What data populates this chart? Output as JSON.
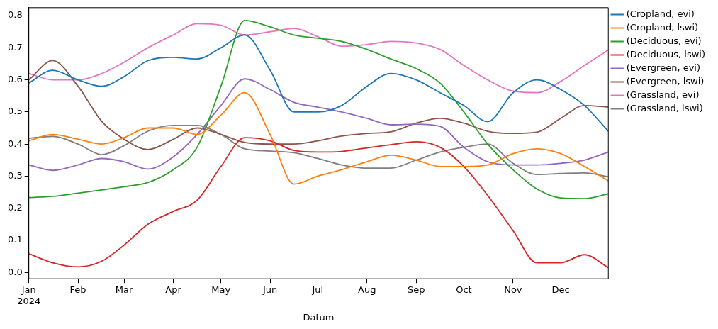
{
  "chart_data": {
    "type": "line",
    "xlabel": "Datum",
    "x": [
      "2024-01-01",
      "2024-01-16",
      "2024-02-01",
      "2024-02-16",
      "2024-03-01",
      "2024-03-16",
      "2024-04-01",
      "2024-04-16",
      "2024-05-01",
      "2024-05-16",
      "2024-06-01",
      "2024-06-16",
      "2024-07-01",
      "2024-07-16",
      "2024-08-01",
      "2024-08-16",
      "2024-09-01",
      "2024-09-16",
      "2024-10-01",
      "2024-10-16",
      "2024-11-01",
      "2024-11-16",
      "2024-12-01",
      "2024-12-16",
      "2024-12-31"
    ],
    "xlim": [
      "2024-01-01",
      "2024-12-31"
    ],
    "xticks": [
      {
        "value": "2024-01-01",
        "label": "Jan\n2024"
      },
      {
        "value": "2024-02-01",
        "label": "Feb"
      },
      {
        "value": "2024-03-01",
        "label": "Mar"
      },
      {
        "value": "2024-04-01",
        "label": "Apr"
      },
      {
        "value": "2024-05-01",
        "label": "May"
      },
      {
        "value": "2024-06-01",
        "label": "Jun"
      },
      {
        "value": "2024-07-01",
        "label": "Jul"
      },
      {
        "value": "2024-08-01",
        "label": "Aug"
      },
      {
        "value": "2024-09-01",
        "label": "Sep"
      },
      {
        "value": "2024-10-01",
        "label": "Oct"
      },
      {
        "value": "2024-11-01",
        "label": "Nov"
      },
      {
        "value": "2024-12-01",
        "label": "Dec"
      }
    ],
    "ylim": [
      -0.02,
      0.825
    ],
    "yticks": [
      {
        "value": 0,
        "label": "0.0"
      },
      {
        "value": 0.1,
        "label": "0.1"
      },
      {
        "value": 0.2,
        "label": "0.2"
      },
      {
        "value": 0.3,
        "label": "0.3"
      },
      {
        "value": 0.4,
        "label": "0.4"
      },
      {
        "value": 0.5,
        "label": "0.5"
      },
      {
        "value": 0.6,
        "label": "0.6"
      },
      {
        "value": 0.7,
        "label": "0.7"
      },
      {
        "value": 0.8,
        "label": "0.8"
      }
    ],
    "grid": false,
    "legend": "top right",
    "marker": "none",
    "line_style": "solid",
    "series": [
      {
        "name": "(Cropland, evi)",
        "color": "#1f77b4",
        "values": [
          0.59,
          0.63,
          0.6,
          0.58,
          0.61,
          0.66,
          0.67,
          0.665,
          0.7,
          0.74,
          0.63,
          0.5,
          0.5,
          0.52,
          0.58,
          0.62,
          0.6,
          0.56,
          0.52,
          0.47,
          0.56,
          0.6,
          0.57,
          0.52,
          0.44
        ]
      },
      {
        "name": "(Cropland, lswi)",
        "color": "#ff7f0e",
        "values": [
          0.41,
          0.43,
          0.415,
          0.4,
          0.42,
          0.45,
          0.45,
          0.43,
          0.49,
          0.56,
          0.43,
          0.275,
          0.3,
          0.32,
          0.345,
          0.365,
          0.35,
          0.33,
          0.33,
          0.335,
          0.37,
          0.385,
          0.37,
          0.33,
          0.285
        ]
      },
      {
        "name": "(Deciduous, evi)",
        "color": "#2ca02c",
        "values": [
          0.233,
          0.237,
          0.247,
          0.257,
          0.267,
          0.28,
          0.32,
          0.39,
          0.58,
          0.785,
          0.765,
          0.74,
          0.73,
          0.72,
          0.695,
          0.665,
          0.635,
          0.59,
          0.5,
          0.4,
          0.32,
          0.26,
          0.232,
          0.23,
          0.245
        ]
      },
      {
        "name": "(Deciduous, lswi)",
        "color": "#d62728",
        "values": [
          0.058,
          0.03,
          0.017,
          0.035,
          0.085,
          0.15,
          0.19,
          0.225,
          0.33,
          0.42,
          0.41,
          0.38,
          0.375,
          0.377,
          0.388,
          0.398,
          0.407,
          0.39,
          0.33,
          0.24,
          0.13,
          0.03,
          0.03,
          0.055,
          0.015
        ]
      },
      {
        "name": "(Evergreen, evi)",
        "color": "#9467bd",
        "values": [
          0.335,
          0.318,
          0.335,
          0.355,
          0.345,
          0.322,
          0.36,
          0.43,
          0.52,
          0.603,
          0.57,
          0.53,
          0.515,
          0.5,
          0.48,
          0.46,
          0.462,
          0.455,
          0.39,
          0.345,
          0.335,
          0.335,
          0.34,
          0.35,
          0.375
        ]
      },
      {
        "name": "(Evergreen, lswi)",
        "color": "#8c564b",
        "values": [
          0.6,
          0.66,
          0.58,
          0.47,
          0.415,
          0.383,
          0.415,
          0.45,
          0.43,
          0.405,
          0.4,
          0.4,
          0.41,
          0.425,
          0.433,
          0.438,
          0.465,
          0.48,
          0.465,
          0.44,
          0.433,
          0.437,
          0.48,
          0.52,
          0.515
        ]
      },
      {
        "name": "(Grassland, evi)",
        "color": "#e377c2",
        "values": [
          0.62,
          0.6,
          0.6,
          0.62,
          0.655,
          0.7,
          0.74,
          0.775,
          0.77,
          0.74,
          0.75,
          0.76,
          0.735,
          0.705,
          0.71,
          0.72,
          0.715,
          0.695,
          0.645,
          0.6,
          0.565,
          0.56,
          0.595,
          0.645,
          0.693
        ]
      },
      {
        "name": "(Grassland, lswi)",
        "color": "#7f7f7f",
        "values": [
          0.418,
          0.424,
          0.4,
          0.367,
          0.395,
          0.44,
          0.458,
          0.458,
          0.43,
          0.385,
          0.378,
          0.373,
          0.355,
          0.335,
          0.325,
          0.325,
          0.35,
          0.375,
          0.39,
          0.4,
          0.34,
          0.305,
          0.308,
          0.31,
          0.298
        ]
      }
    ]
  }
}
